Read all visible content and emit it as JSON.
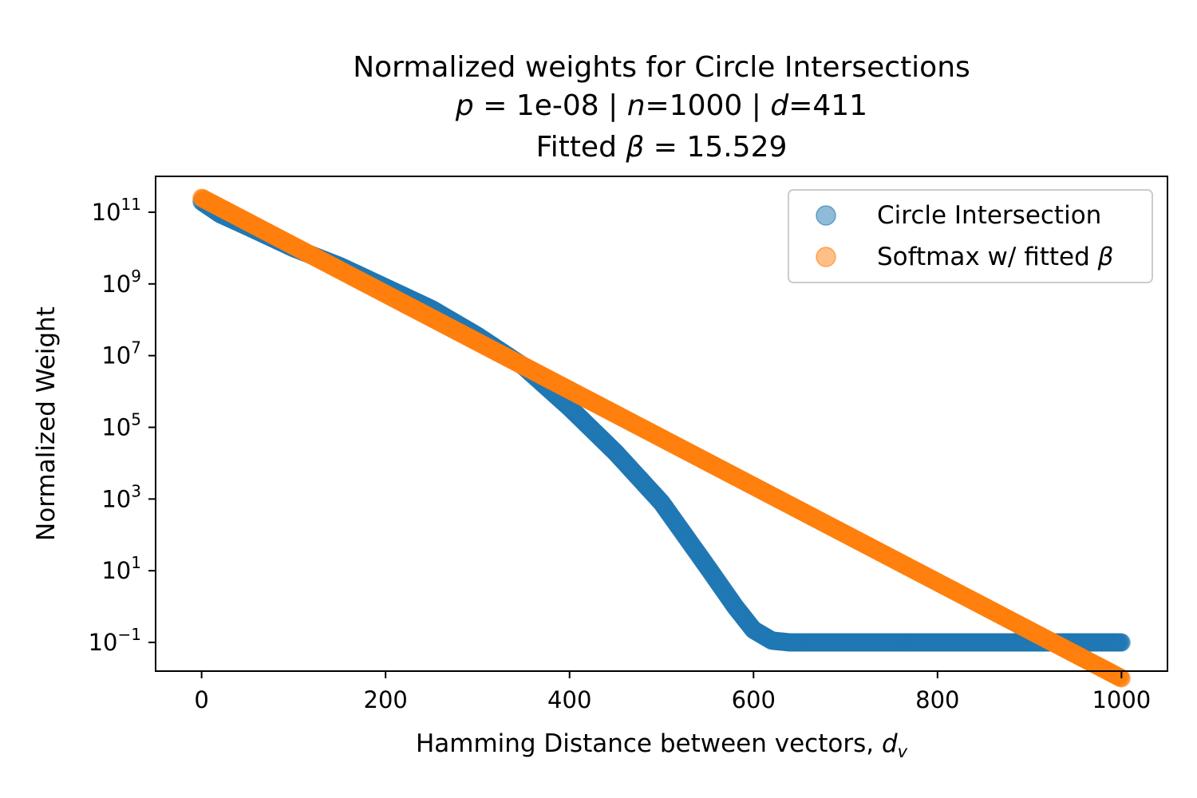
{
  "title": {
    "line1": "Normalized weights for Circle Intersections",
    "line2": {
      "p_sym": "p",
      "p_eq": " = 1e-08 | ",
      "n_sym": "n",
      "n_eq": "=1000 | ",
      "d_sym": "d",
      "d_eq": "=411"
    },
    "line3": {
      "prefix": "Fitted ",
      "beta_sym": "β",
      "beta_eq": " = 15.529"
    }
  },
  "chart_data": {
    "type": "scatter",
    "title": "Normalized weights for Circle Intersections",
    "subtitle": "p = 1e-08 | n=1000 | d=411 — Fitted β = 15.529",
    "xlabel": "Hamming Distance between vectors, d_v",
    "xlabel_main": "Hamming Distance between vectors, ",
    "xlabel_sym": "d",
    "xlabel_sub": "v",
    "ylabel": "Normalized Weight",
    "y_scale": "log",
    "xlim": [
      -50,
      1050
    ],
    "ylim_log10": [
      -1.8,
      12
    ],
    "x_ticks": [
      0,
      200,
      400,
      600,
      800,
      1000
    ],
    "y_ticks_exponent": [
      11,
      9,
      7,
      5,
      3,
      1,
      -1
    ],
    "y_tick_base": "10",
    "y_tick_labels": [
      "11",
      "9",
      "7",
      "5",
      "3",
      "1",
      "−1"
    ],
    "grid": false,
    "legend_position": "top-right",
    "series": [
      {
        "name": "Circle Intersection",
        "color": "#1f77b4",
        "x": [
          0,
          20,
          50,
          100,
          150,
          200,
          250,
          300,
          350,
          400,
          450,
          500,
          550,
          580,
          600,
          620,
          640,
          700,
          800,
          900,
          1000
        ],
        "log10_y": [
          11.3,
          10.95,
          10.6,
          10.0,
          9.5,
          8.9,
          8.3,
          7.55,
          6.7,
          5.55,
          4.3,
          2.9,
          1.1,
          0.0,
          -0.65,
          -0.95,
          -1.0,
          -1.0,
          -1.0,
          -1.0,
          -1.0
        ]
      },
      {
        "name": "Softmax w/ fitted β",
        "color": "#ff7f0e",
        "x": [
          0,
          1000
        ],
        "log10_y": [
          11.4,
          -2.0
        ]
      }
    ]
  },
  "legend": {
    "circle_label": "Circle Intersection",
    "softmax_label_main": "Softmax w/ fitted ",
    "softmax_label_sym": "β"
  }
}
